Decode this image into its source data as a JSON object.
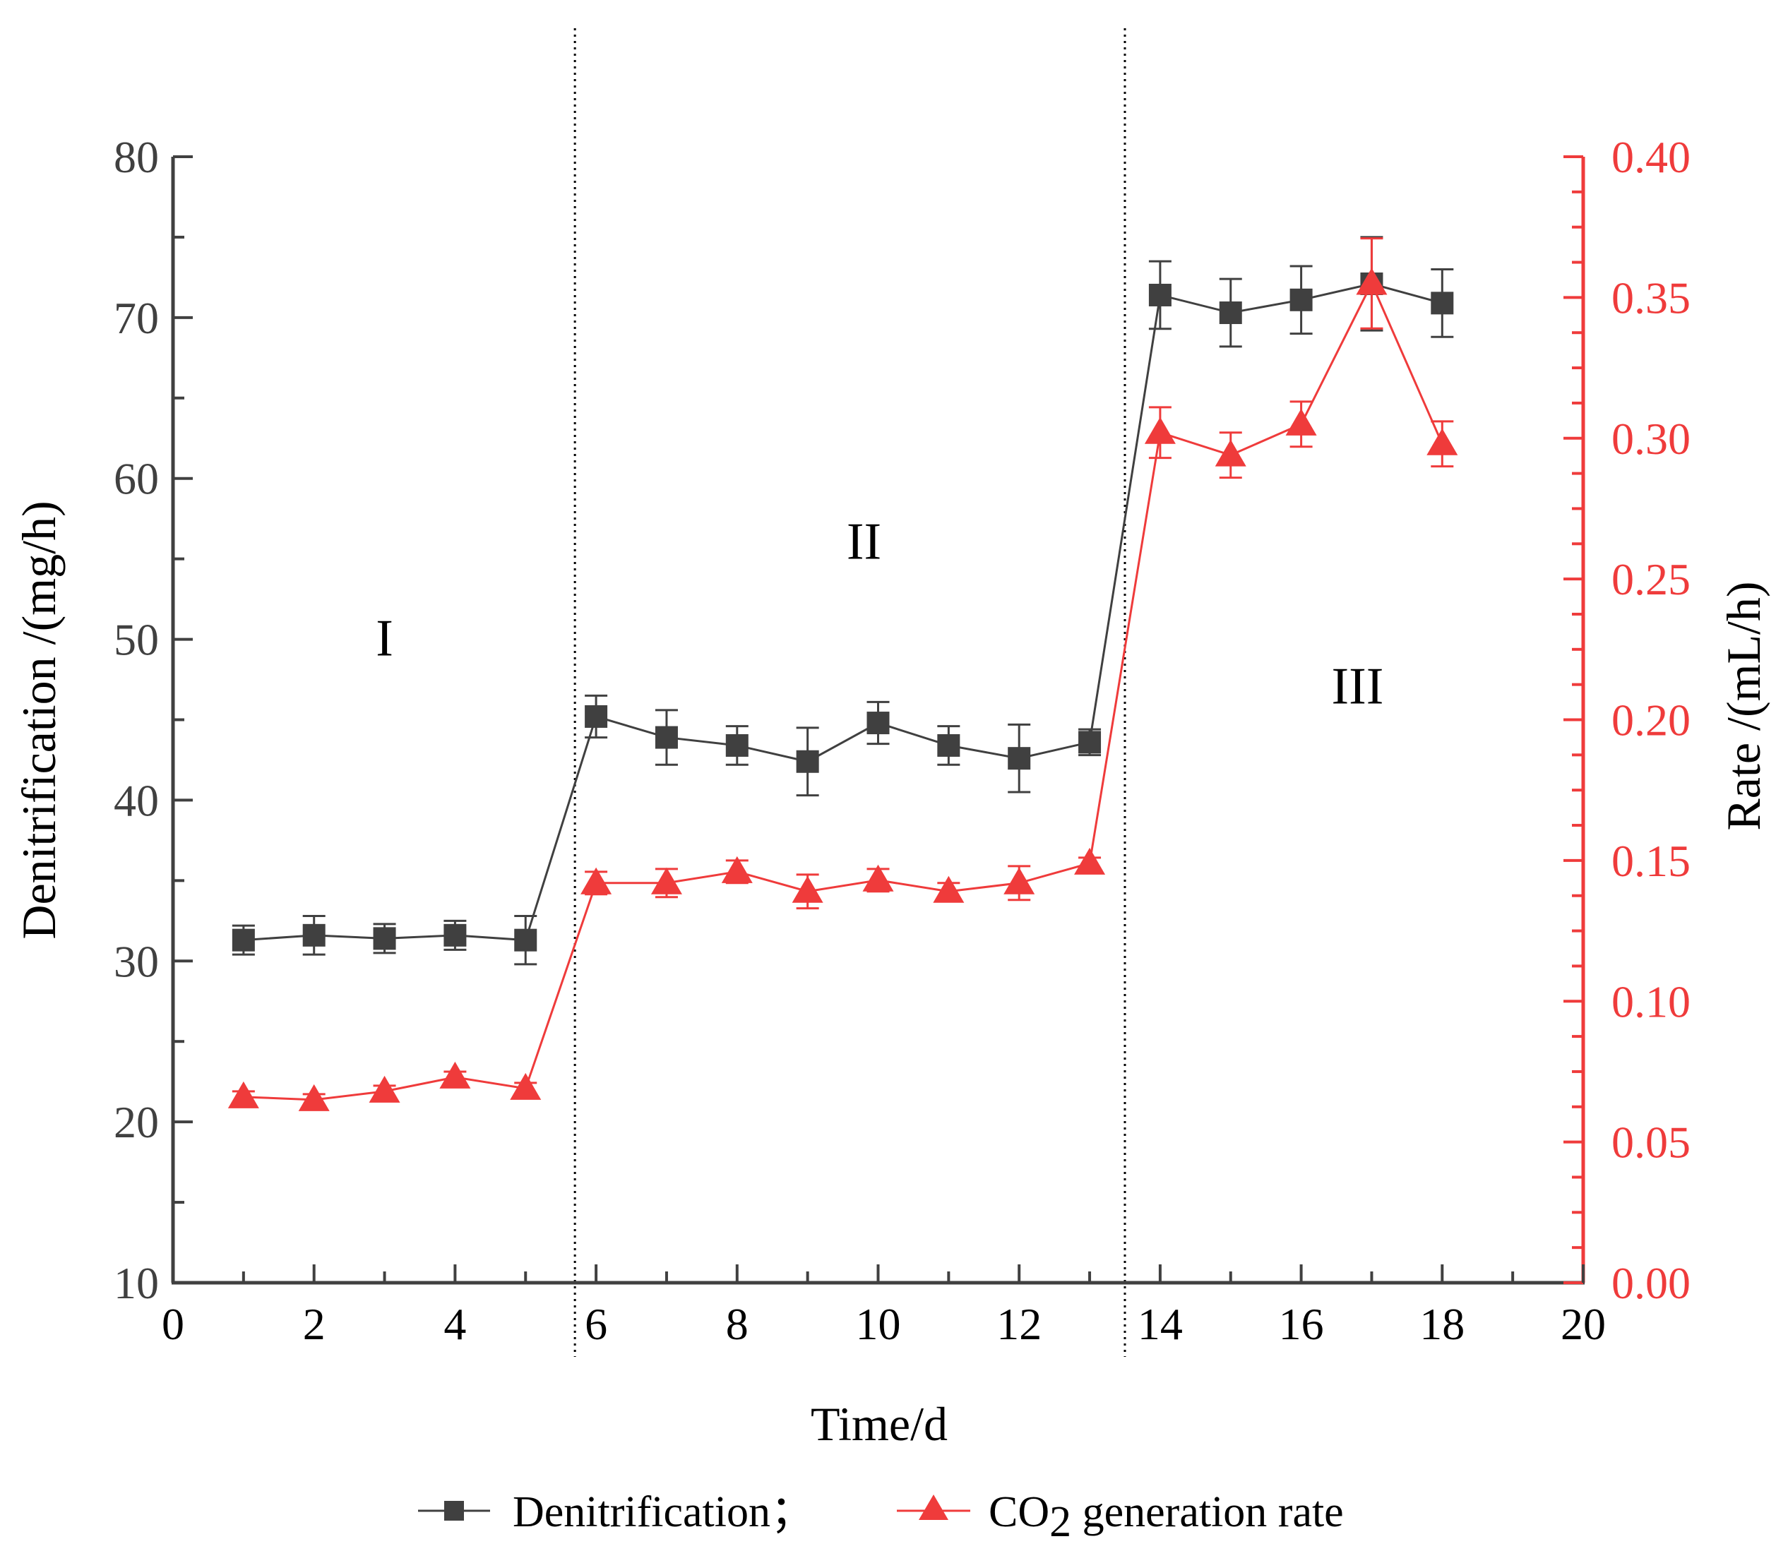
{
  "chart_data": {
    "type": "line",
    "x": [
      1,
      2,
      3,
      4,
      5,
      6,
      7,
      8,
      9,
      10,
      11,
      12,
      13,
      14,
      15,
      16,
      17,
      18
    ],
    "xlabel": "Time/d",
    "xlim": [
      0,
      20
    ],
    "xticks": [
      "0",
      "2",
      "4",
      "6",
      "8",
      "10",
      "12",
      "14",
      "16",
      "18",
      "20"
    ],
    "ylabel_left": "Denitrification /(mg/h)",
    "ylim_left": [
      10,
      80
    ],
    "yticks_left": [
      "10",
      "20",
      "30",
      "40",
      "50",
      "60",
      "70",
      "80"
    ],
    "ylabel_right": "Rate /(mL/h)",
    "ylim_right": [
      0,
      0.4
    ],
    "yticks_right": [
      "0.00",
      "0.05",
      "0.10",
      "0.15",
      "0.20",
      "0.25",
      "0.30",
      "0.35",
      "0.40"
    ],
    "series": [
      {
        "name": "Denitrification",
        "axis": "left",
        "marker": "square",
        "color": "#404040",
        "values": [
          31.3,
          31.6,
          31.4,
          31.6,
          31.3,
          45.2,
          43.9,
          43.4,
          42.4,
          44.8,
          43.4,
          42.6,
          43.6,
          71.4,
          70.3,
          71.1,
          72.1,
          70.9
        ],
        "errors": [
          0.9,
          1.2,
          0.9,
          0.9,
          1.5,
          1.3,
          1.7,
          1.2,
          2.1,
          1.3,
          1.2,
          2.1,
          0.8,
          2.1,
          2.1,
          2.1,
          2.9,
          2.1
        ]
      },
      {
        "name": "CO2 generation rate",
        "axis": "right",
        "marker": "triangle",
        "color": "#ef3b3b",
        "values": [
          0.066,
          0.065,
          0.068,
          0.073,
          0.069,
          0.142,
          0.142,
          0.146,
          0.139,
          0.143,
          0.139,
          0.142,
          0.149,
          0.302,
          0.294,
          0.305,
          0.355,
          0.298
        ],
        "errors": [
          0.002,
          0.002,
          0.002,
          0.002,
          0.002,
          0.004,
          0.005,
          0.004,
          0.006,
          0.004,
          0.003,
          0.006,
          0.002,
          0.009,
          0.008,
          0.008,
          0.016,
          0.008
        ]
      }
    ],
    "phase_dividers_x": [
      5.7,
      13.5
    ],
    "phase_labels": [
      {
        "text": "I",
        "x": 3,
        "y": 49
      },
      {
        "text": "II",
        "x": 9.8,
        "y": 55
      },
      {
        "text": "III",
        "x": 16.8,
        "y": 46
      }
    ],
    "legend": {
      "position": "bottom-center",
      "items": [
        "Denitrification；",
        "CO",
        "2",
        " generation rate"
      ]
    },
    "colors": {
      "left_axis": "#404040",
      "right_axis": "#ef3b3b",
      "text": "#000000"
    }
  }
}
